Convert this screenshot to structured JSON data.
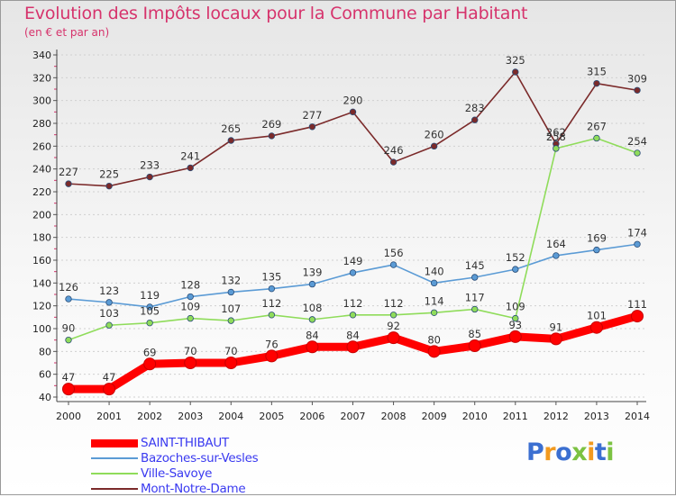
{
  "title": "Evolution des Impôts locaux pour la Commune par Habitant",
  "subtitle": "(en € et par an)",
  "logo": {
    "letters": [
      {
        "char": "P",
        "color": "#3b6fd1"
      },
      {
        "char": "r",
        "color": "#f29a1f"
      },
      {
        "char": "o",
        "color": "#3b6fd1"
      },
      {
        "char": "x",
        "color": "#7cc242"
      },
      {
        "char": "i",
        "color": "#f29a1f"
      },
      {
        "char": "t",
        "color": "#3b6fd1"
      },
      {
        "char": "i",
        "color": "#7cc242"
      }
    ]
  },
  "chart_data": {
    "type": "line",
    "title": "Evolution des Impôts locaux pour la Commune par Habitant",
    "subtitle": "(en € et par an)",
    "xlabel": "",
    "ylabel": "",
    "x": [
      "2000",
      "2001",
      "2002",
      "2003",
      "2004",
      "2005",
      "2006",
      "2007",
      "2008",
      "2009",
      "2010",
      "2011",
      "2012",
      "2013",
      "2014"
    ],
    "ylim": [
      40,
      340
    ],
    "yticks": [
      40,
      60,
      80,
      100,
      120,
      140,
      160,
      180,
      200,
      220,
      240,
      260,
      280,
      300,
      320,
      340
    ],
    "grid": true,
    "legend_position": "bottom-left",
    "series": [
      {
        "name": "SAINT-THIBAUT",
        "color": "#ff0000",
        "values": [
          47,
          47,
          69,
          70,
          70,
          76,
          84,
          84,
          92,
          80,
          85,
          93,
          91,
          101,
          111
        ]
      },
      {
        "name": "Bazoches-sur-Vesles",
        "color": "#5b9bd5",
        "values": [
          126,
          123,
          119,
          128,
          132,
          135,
          139,
          149,
          156,
          140,
          145,
          152,
          164,
          169,
          174
        ]
      },
      {
        "name": "Ville-Savoye",
        "color": "#8fdc5a",
        "values": [
          90,
          103,
          105,
          109,
          107,
          112,
          108,
          112,
          112,
          114,
          117,
          109,
          258,
          267,
          254
        ]
      },
      {
        "name": "Mont-Notre-Dame",
        "color": "#7b2a2a",
        "values": [
          227,
          225,
          233,
          241,
          265,
          269,
          277,
          290,
          246,
          260,
          283,
          325,
          262,
          315,
          309
        ]
      }
    ]
  }
}
